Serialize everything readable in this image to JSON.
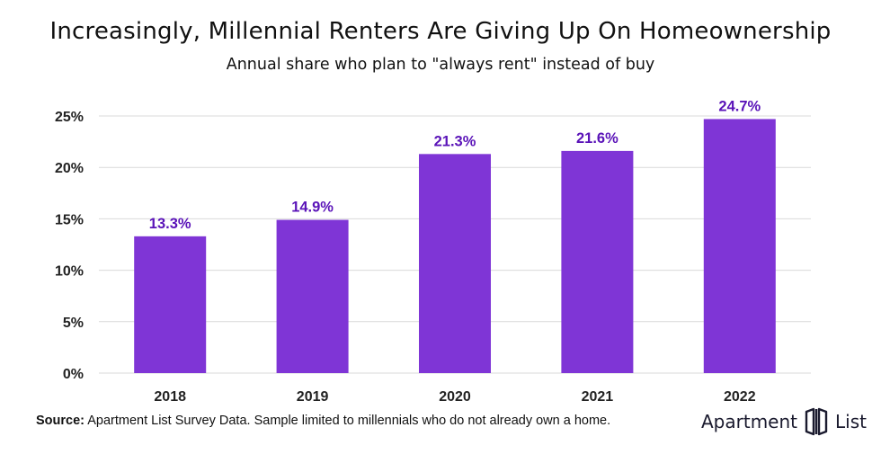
{
  "header": {
    "title": "Increasingly, Millennial Renters Are Giving Up On Homeownership",
    "subtitle": "Annual share who plan to \"always rent\" instead of buy"
  },
  "footer": {
    "source_label": "Source:",
    "source_text": " Apartment List Survey Data. Sample limited to millennials who do not already own a home.",
    "brand_left": "Apartment",
    "brand_right": "List",
    "brand_icon": "apartment-list-logo-icon"
  },
  "colors": {
    "bar": "#7f35d6",
    "label": "#5a13b8",
    "grid": "#d9d9d9",
    "axis_text": "#222222"
  },
  "chart_data": {
    "type": "bar",
    "title": "Increasingly, Millennial Renters Are Giving Up On Homeownership",
    "subtitle": "Annual share who plan to \"always rent\" instead of buy",
    "categories": [
      "2018",
      "2019",
      "2020",
      "2021",
      "2022"
    ],
    "values": [
      13.3,
      14.9,
      21.3,
      21.6,
      24.7
    ],
    "data_labels": [
      "13.3%",
      "14.9%",
      "21.3%",
      "21.6%",
      "24.7%"
    ],
    "ylim": [
      0,
      25
    ],
    "yticks": [
      0,
      5,
      10,
      15,
      20,
      25
    ],
    "ytick_labels": [
      "0%",
      "5%",
      "10%",
      "15%",
      "20%",
      "25%"
    ],
    "grid": true,
    "legend": "none"
  }
}
